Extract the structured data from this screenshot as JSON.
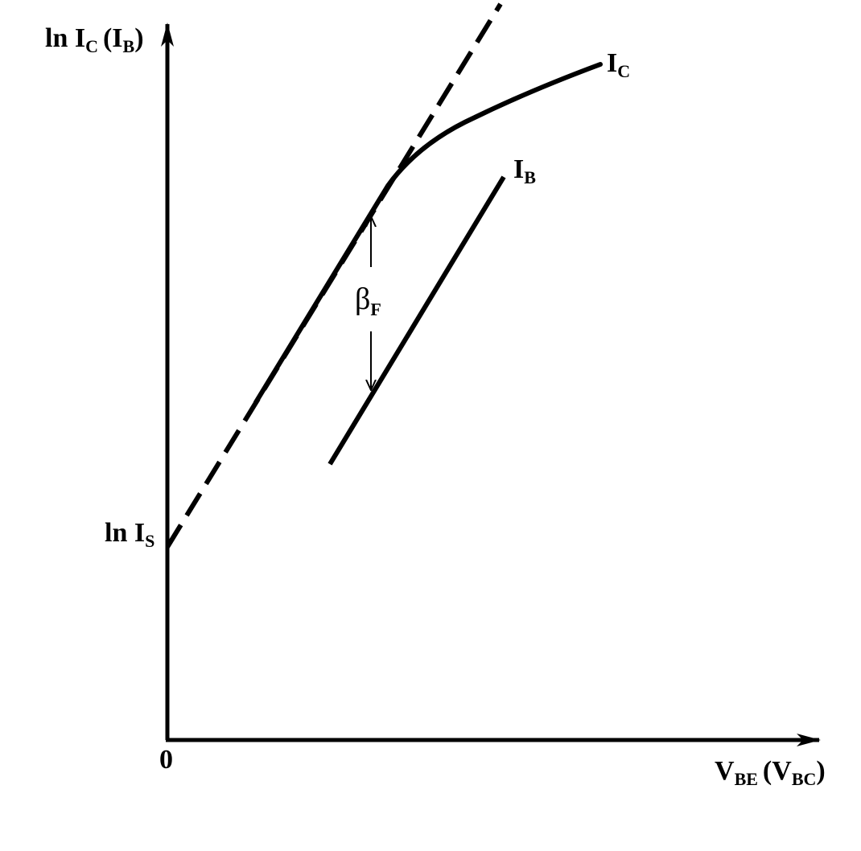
{
  "axis_labels": {
    "y_main": "ln I",
    "y_main_sub": "C",
    "y_paren": "(I",
    "y_paren_sub": "B",
    "y_close": ")",
    "x_main": "V",
    "x_main_sub": "BE",
    "x_paren": "(V",
    "x_paren_sub": "BC",
    "x_close": ")",
    "origin": "0",
    "intercept": "ln I",
    "intercept_sub": "S"
  },
  "curve_labels": {
    "ic": "I",
    "ic_sub": "C",
    "ib": "I",
    "ib_sub": "B"
  },
  "gap_label": {
    "symbol": "β",
    "symbol_sub": "F"
  },
  "colors": {
    "ink": "#000000",
    "background": "#ffffff"
  }
}
